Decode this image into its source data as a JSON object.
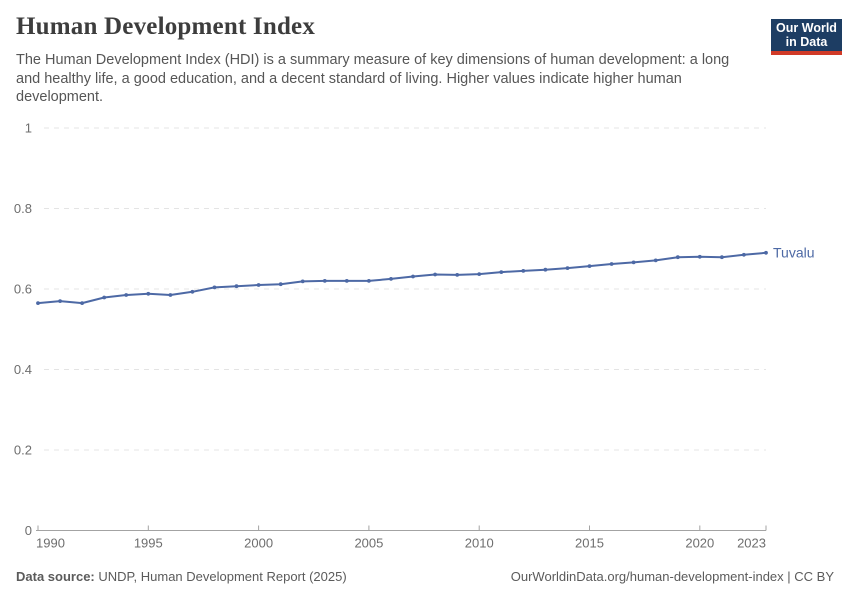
{
  "header": {
    "title": "Human Development Index",
    "subtitle": "The Human Development Index (HDI) is a summary measure of key dimensions of human development: a long and healthy life, a good education, and a decent standard of living. Higher values indicate higher human development.",
    "logo": {
      "line1": "Our World",
      "line2": "in Data",
      "bg_color": "#1d3d63",
      "accent_color": "#d13a27"
    }
  },
  "chart_data": {
    "type": "line",
    "title": "Human Development Index",
    "entity": "Tuvalu",
    "end_label": "Tuvalu",
    "x": [
      1990,
      1991,
      1992,
      1993,
      1994,
      1995,
      1996,
      1997,
      1998,
      1999,
      2000,
      2001,
      2002,
      2003,
      2004,
      2005,
      2006,
      2007,
      2008,
      2009,
      2010,
      2011,
      2012,
      2013,
      2014,
      2015,
      2016,
      2017,
      2018,
      2019,
      2020,
      2021,
      2022,
      2023
    ],
    "series": [
      {
        "name": "Tuvalu",
        "color": "#4d69a5",
        "values": [
          0.565,
          0.57,
          0.565,
          0.579,
          0.585,
          0.588,
          0.585,
          0.593,
          0.604,
          0.607,
          0.61,
          0.612,
          0.619,
          0.62,
          0.62,
          0.62,
          0.625,
          0.631,
          0.636,
          0.635,
          0.637,
          0.642,
          0.645,
          0.648,
          0.652,
          0.657,
          0.662,
          0.666,
          0.671,
          0.679,
          0.68,
          0.679,
          0.685,
          0.69
        ]
      }
    ],
    "xlabel": "",
    "ylabel": "",
    "ylim": [
      0,
      1
    ],
    "yticks": [
      0,
      0.2,
      0.4,
      0.6,
      0.8,
      1
    ],
    "xticks": [
      1990,
      1995,
      2000,
      2005,
      2010,
      2015,
      2020,
      2023
    ],
    "grid": "horizontal-dashed",
    "legend_position": "end-of-line"
  },
  "styles": {
    "grid_color": "#e4e4e4",
    "axis_color": "#a3a3a3",
    "tick_text_color": "#6e6e6e"
  },
  "footer": {
    "datasource_label": "Data source:",
    "datasource_value": " UNDP, Human Development Report (2025)",
    "credit_text": "OurWorldinData.org/human-development-index | CC BY"
  }
}
